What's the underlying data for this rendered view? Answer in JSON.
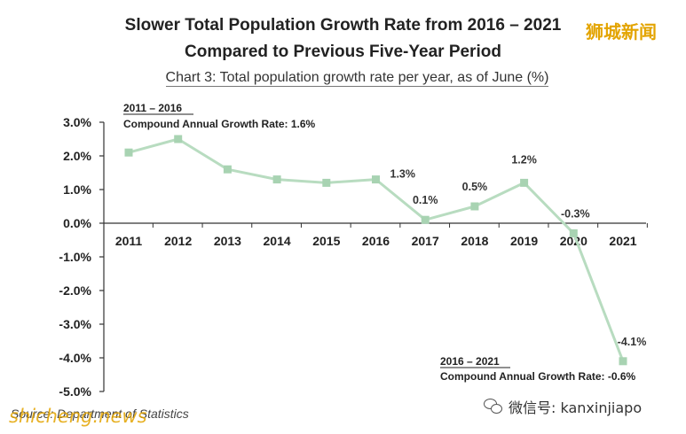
{
  "title_line1": "Slower Total Population Growth Rate from 2016 – 2021",
  "title_line2": "Compared to Previous Five-Year Period",
  "subtitle": "Chart 3: Total population growth rate per year, as of June (%)",
  "watermark_top": "狮城新闻",
  "source": "Source: Department of Statistics",
  "watermark_bottom": "shicheng.news",
  "wechat_text": "微信号: kanxinjiapo",
  "annotations": [
    {
      "period": "2011 – 2016",
      "text": "Compound Annual Growth Rate: 1.6%"
    },
    {
      "period": "2016 – 2021",
      "text": "Compound Annual Growth Rate: -0.6%"
    }
  ],
  "chart_data": {
    "type": "line",
    "title": "Slower Total Population Growth Rate from 2016 – 2021 Compared to Previous Five-Year Period",
    "subtitle": "Chart 3: Total population growth rate per year, as of June (%)",
    "xlabel": "",
    "ylabel": "",
    "x": [
      "2011",
      "2012",
      "2013",
      "2014",
      "2015",
      "2016",
      "2017",
      "2018",
      "2019",
      "2020",
      "2021"
    ],
    "values": [
      2.1,
      2.5,
      1.6,
      1.3,
      1.2,
      1.3,
      0.1,
      0.5,
      1.2,
      -0.3,
      -4.1
    ],
    "data_labels": [
      "",
      "",
      "",
      "",
      "",
      "1.3%",
      "0.1%",
      "0.5%",
      "1.2%",
      "-0.3%",
      "-4.1%"
    ],
    "ylim": [
      -5.0,
      3.0
    ],
    "yticks": [
      3.0,
      2.0,
      1.0,
      0.0,
      -1.0,
      -2.0,
      -3.0,
      -4.0,
      -5.0
    ],
    "ytick_labels": [
      "3.0%",
      "2.0%",
      "1.0%",
      "0.0%",
      "-1.0%",
      "-2.0%",
      "-3.0%",
      "-4.0%",
      "-5.0%"
    ],
    "grid": false,
    "line_color": "#b8dcc0",
    "marker_color": "#a8d3b2"
  }
}
